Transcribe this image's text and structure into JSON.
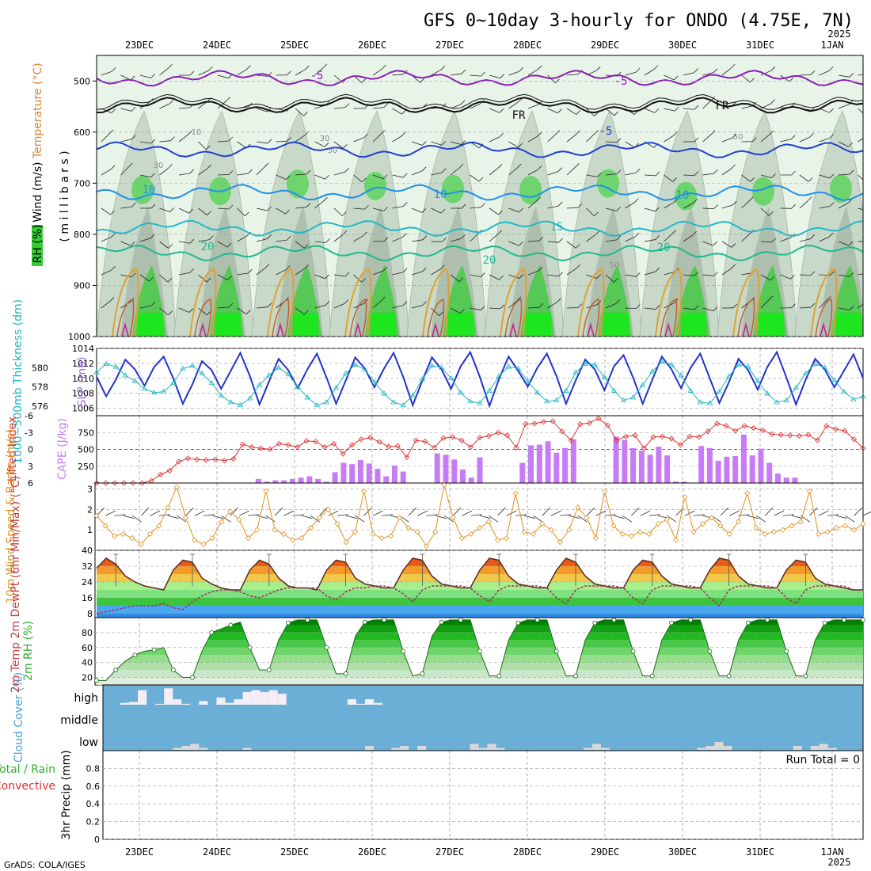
{
  "title": "GFS 0~10day 3-hourly for ONDO (4.75E, 7N)",
  "footer": "GrADS: COLA/IGES",
  "dates": [
    "23DEC",
    "24DEC",
    "25DEC",
    "26DEC",
    "27DEC",
    "28DEC",
    "29DEC",
    "30DEC",
    "31DEC",
    "1JAN"
  ],
  "year_label": "2025",
  "colors": {
    "grid": "#a0a0a0",
    "cloud_bg": "#6baed6",
    "cape": "#c77cf5",
    "li": "#dd3333",
    "slp": "#2233cc",
    "thk": "#22b5c0",
    "wind10": "#e09020",
    "temp": "#5a2a20",
    "dewpt": "#a03060"
  },
  "chart_data": [
    {
      "id": "upper_air",
      "type": "heatmap",
      "ylabel": "millibars",
      "labels": {
        "wind": "Wind (m/s)",
        "temperature": "Temperature (°C)",
        "rh": "RH (%)"
      },
      "yticks": [
        500,
        600,
        700,
        800,
        900,
        1000
      ],
      "ylim": [
        1000,
        450
      ],
      "contours": [
        {
          "name": "-5",
          "kind": "temperature",
          "color": "#8a1fb5",
          "level": 495
        },
        {
          "name": "FR",
          "kind": "freezing",
          "color": "#111111",
          "level": 548
        },
        {
          "name": "-5",
          "kind": "temperature",
          "color": "#2040d0",
          "level": 635
        },
        {
          "name": "10",
          "kind": "temperature",
          "color": "#2090e8",
          "level": 718
        },
        {
          "name": "15",
          "kind": "temperature",
          "color": "#22b8c8",
          "level": 788
        },
        {
          "name": "20",
          "kind": "temperature",
          "color": "#20b890",
          "level": 836
        }
      ],
      "contour_labels": [
        "-5",
        "-5",
        "FR",
        "FR",
        "-5",
        "10",
        "10",
        "10",
        "15",
        "20",
        "20",
        "20"
      ],
      "rh_labels": [
        "10",
        "30",
        "30",
        "50",
        "50",
        "50"
      ]
    },
    {
      "id": "slp_thickness",
      "type": "line",
      "ylabel_left": "1000~500mb Thickness (dm)",
      "ylabel_right": "SLP (mb)",
      "left_ticks": [
        576,
        578,
        580
      ],
      "right_ticks": [
        1006,
        1008,
        1010,
        1012,
        1014
      ],
      "left_range": [
        575,
        582
      ],
      "right_range": [
        1005,
        1014
      ],
      "series": [
        {
          "name": "SLP",
          "axis": "right",
          "values": [
            1010.2,
            1007.6,
            1009.8,
            1012.5,
            1011.2,
            1009.0,
            1011.5,
            1012.9,
            1010.0,
            1006.6,
            1009.2,
            1012.3,
            1011.1,
            1008.6,
            1011.0,
            1013.4,
            1010.3,
            1006.5,
            1009.6,
            1012.6,
            1011.1,
            1008.7,
            1011.2,
            1013.3,
            1010.1,
            1006.6,
            1009.7,
            1012.8,
            1011.3,
            1008.8,
            1011.3,
            1013.4,
            1010.2,
            1006.4,
            1009.7,
            1012.8,
            1011.2,
            1008.6,
            1011.6,
            1013.5,
            1010.2,
            1006.3,
            1009.9,
            1012.9,
            1011.0,
            1008.9,
            1011.4,
            1013.3,
            1010.3,
            1006.6,
            1009.7,
            1012.5,
            1011.2,
            1008.4,
            1011.6,
            1013.1,
            1010.1,
            1006.6,
            1009.8,
            1012.9,
            1011.2,
            1008.7,
            1011.4,
            1013.3,
            1010.0,
            1006.7,
            1009.5,
            1012.6,
            1011.1,
            1008.5,
            1011.5,
            1013.5,
            1010.1,
            1006.5,
            1009.8,
            1012.6,
            1011.2,
            1008.8,
            1011.0,
            1013.2,
            1010.0
          ]
        },
        {
          "name": "Thickness",
          "axis": "left",
          "values": [
            579.5,
            580.4,
            580.1,
            579.2,
            578.6,
            577.8,
            577.4,
            577.5,
            578.4,
            579.9,
            580.2,
            579.4,
            578.4,
            577.1,
            576.4,
            576.1,
            576.8,
            578.2,
            579.2,
            580.0,
            579.3,
            578.0,
            576.9,
            576.1,
            576.4,
            577.9,
            579.4,
            580.3,
            579.8,
            578.5,
            577.3,
            576.4,
            576.1,
            577.1,
            578.8,
            580.2,
            580.0,
            578.9,
            577.4,
            576.5,
            576.3,
            577.6,
            579.1,
            580.1,
            579.9,
            578.6,
            577.4,
            576.5,
            576.6,
            577.6,
            579.5,
            580.4,
            580.3,
            579.0,
            577.6,
            576.6,
            576.9,
            578.2,
            579.6,
            580.6,
            580.3,
            579.2,
            577.6,
            576.4,
            576.3,
            577.5,
            579.1,
            580.3,
            580.1,
            578.6,
            577.3,
            576.4,
            576.6,
            577.9,
            579.4,
            580.4,
            580.0,
            578.7,
            577.5,
            576.7,
            577.0
          ]
        }
      ]
    },
    {
      "id": "cape_li",
      "type": "bar",
      "ylabel_left": "Lifted Index",
      "ylabel_right": "CAPE (J/kg)",
      "li_ticks": [
        "-3",
        "-6",
        "0",
        "3",
        "6"
      ],
      "cape_ticks": [
        "250",
        "500",
        "750"
      ],
      "cape_range": [
        0,
        1000
      ],
      "li_range": [
        6,
        -6
      ],
      "series": [
        {
          "name": "CAPE",
          "values": [
            0,
            0,
            0,
            0,
            0,
            0,
            0,
            0,
            0,
            0,
            0,
            0,
            0,
            0,
            0,
            0,
            0,
            0,
            0,
            60,
            20,
            40,
            40,
            60,
            80,
            100,
            60,
            20,
            160,
            300,
            280,
            340,
            290,
            210,
            100,
            260,
            170,
            0,
            0,
            0,
            440,
            420,
            350,
            200,
            80,
            380,
            0,
            0,
            0,
            0,
            300,
            560,
            570,
            620,
            450,
            520,
            650,
            0,
            0,
            0,
            0,
            690,
            640,
            520,
            480,
            420,
            540,
            410,
            20,
            20,
            0,
            550,
            520,
            330,
            390,
            400,
            720,
            410,
            510,
            300,
            140,
            80,
            80,
            0,
            0,
            0,
            0,
            0,
            0,
            0,
            0
          ]
        },
        {
          "name": "Lifted Index",
          "values": [
            6,
            6,
            6,
            6,
            6,
            6,
            5.6,
            4.5,
            3.8,
            2.2,
            1.6,
            1.8,
            1.9,
            1.8,
            2,
            1.7,
            -0.9,
            -0.4,
            -0.2,
            0,
            -1,
            -0.8,
            -0.4,
            -1.5,
            -1.4,
            -0.4,
            -1,
            0.8,
            -0.8,
            -1.8,
            -2.1,
            -1.3,
            -0.5,
            -0.6,
            1.4,
            -1.6,
            -1.4,
            -0.3,
            -2,
            -2.2,
            -1.6,
            -0.4,
            -2.1,
            -2.4,
            -3,
            -2.5,
            -0.3,
            -4.5,
            -4.6,
            -4.9,
            -5,
            -3.2,
            -1.6,
            -4.5,
            -4.7,
            -5.5,
            -4.3,
            -1.6,
            -2.3,
            -2.5,
            -0.2,
            -2.2,
            -2.3,
            -1.9,
            -0.8,
            -2.3,
            -2.2,
            -3.2,
            -4.6,
            -4.2,
            -3.3,
            -4.2,
            -3.8,
            -3.4,
            -2.7,
            -2.6,
            -2.5,
            -2.4,
            -2.6,
            -1.6,
            -4.2,
            -3.6,
            -3.3,
            -1.8,
            -0.2
          ]
        }
      ]
    },
    {
      "id": "wind10m",
      "type": "line",
      "ylabel": "10m Wind Speed & Barbs (m/s)",
      "yticks": [
        1,
        2,
        3
      ],
      "ylim": [
        0,
        3.3
      ],
      "series": [
        {
          "name": "10m Wind Speed",
          "values": [
            1.7,
            1.2,
            0.7,
            0.8,
            0.6,
            0.3,
            0.8,
            1.2,
            2.1,
            3.1,
            1.6,
            0.5,
            0.3,
            0.6,
            1.4,
            1.9,
            1.5,
            0.6,
            1.0,
            2.9,
            1.0,
            0.8,
            0.5,
            0.6,
            1.1,
            1.6,
            2.0,
            1.3,
            0.4,
            0.9,
            2.9,
            0.8,
            0.6,
            0.7,
            1.6,
            1.1,
            0.9,
            0.2,
            0.9,
            3.2,
            1.6,
            0.6,
            0.8,
            1.1,
            1.4,
            0.5,
            0.6,
            2.8,
            0.9,
            0.8,
            1.3,
            1.0,
            0.4,
            1.0,
            2.1,
            1.6,
            0.6,
            2.9,
            1.2,
            0.8,
            0.7,
            0.9,
            0.8,
            1.3,
            1.5,
            0.5,
            2.6,
            0.9,
            1.3,
            1.6,
            1.2,
            0.8,
            1.4,
            2.8,
            1.1,
            0.8,
            0.9,
            1.0,
            1.2,
            1.4,
            2.9,
            0.8,
            0.9,
            1.1,
            1.2,
            1.0,
            1.3
          ]
        }
      ]
    },
    {
      "id": "temp2m",
      "type": "area",
      "ylabel": "2m Temp 2m DewPt (6hr Min/Max) (°C)",
      "yticks": [
        8,
        16,
        24,
        32,
        40
      ],
      "ylim": [
        6,
        40
      ],
      "series": [
        {
          "name": "2m Temp",
          "values": [
            31,
            36,
            33,
            27,
            24,
            22,
            21,
            20,
            30,
            35,
            34,
            26,
            23,
            21,
            20,
            20,
            30,
            35,
            33,
            26,
            22,
            21,
            21,
            20,
            30,
            35,
            34,
            26,
            23,
            22,
            21,
            21,
            30,
            36,
            35,
            27,
            23,
            22,
            21,
            21,
            30,
            36,
            35,
            27,
            23,
            22,
            21,
            21,
            30,
            36,
            34,
            27,
            23,
            22,
            21,
            21,
            30,
            35,
            34,
            27,
            23,
            22,
            21,
            21,
            30,
            36,
            35,
            27,
            23,
            22,
            21,
            21,
            30,
            35,
            34,
            26,
            23,
            22,
            21,
            20,
            20
          ]
        },
        {
          "name": "2m DewPt",
          "values": [
            8,
            9,
            10,
            11,
            12,
            12,
            12,
            13,
            11,
            10,
            14,
            17,
            19,
            20,
            20,
            19,
            17,
            16,
            18,
            20,
            21,
            21,
            21,
            21,
            17,
            15,
            19,
            21,
            21,
            22,
            22,
            21,
            18,
            14,
            20,
            22,
            22,
            22,
            22,
            21,
            17,
            14,
            20,
            22,
            22,
            22,
            22,
            21,
            16,
            13,
            20,
            22,
            22,
            22,
            22,
            21,
            16,
            13,
            20,
            22,
            22,
            22,
            22,
            21,
            16,
            12,
            20,
            22,
            22,
            22,
            22,
            21,
            16,
            13,
            20,
            22,
            22,
            22,
            22,
            20,
            20
          ]
        }
      ]
    },
    {
      "id": "rh2m",
      "type": "area",
      "ylabel": "2m RH (%)",
      "yticks": [
        20,
        40,
        60,
        80
      ],
      "ylim": [
        10,
        100
      ],
      "series": [
        {
          "name": "2m RH",
          "values": [
            16,
            16,
            30,
            42,
            50,
            55,
            57,
            60,
            30,
            20,
            20,
            55,
            80,
            85,
            90,
            94,
            60,
            30,
            30,
            70,
            93,
            97,
            97,
            97,
            60,
            25,
            25,
            75,
            94,
            97,
            97,
            97,
            55,
            22,
            25,
            75,
            94,
            97,
            97,
            97,
            55,
            22,
            22,
            70,
            93,
            97,
            97,
            97,
            55,
            22,
            22,
            70,
            93,
            97,
            97,
            97,
            55,
            22,
            22,
            70,
            93,
            97,
            97,
            97,
            55,
            22,
            22,
            70,
            93,
            97,
            97,
            97,
            55,
            22,
            22,
            70,
            93,
            97,
            97,
            97,
            97
          ]
        }
      ]
    },
    {
      "id": "cloud_cover",
      "type": "bar",
      "ylabel": "Cloud Cover (%)",
      "levels": [
        "high",
        "middle",
        "low"
      ],
      "series": [
        {
          "name": "high",
          "values": [
            0,
            0,
            10,
            15,
            80,
            0,
            5,
            90,
            30,
            5,
            0,
            20,
            0,
            40,
            10,
            30,
            70,
            80,
            70,
            80,
            60,
            0,
            0,
            0,
            0,
            0,
            0,
            0,
            30,
            5,
            30,
            10,
            0,
            0,
            0,
            0,
            0,
            0,
            0,
            0,
            0,
            0,
            0,
            0,
            0,
            0,
            0,
            0,
            0,
            0,
            0,
            0,
            0,
            0,
            0,
            0,
            0,
            0,
            0,
            0,
            0,
            0,
            0,
            0,
            0,
            0,
            0,
            0,
            0,
            0,
            0,
            0,
            0,
            0,
            0,
            0,
            0,
            0,
            0,
            0,
            0,
            0,
            0,
            0,
            0,
            0,
            0
          ]
        },
        {
          "name": "low",
          "values": [
            0,
            0,
            0,
            0,
            0,
            0,
            0,
            0,
            10,
            20,
            30,
            10,
            0,
            0,
            0,
            0,
            10,
            0,
            0,
            0,
            0,
            0,
            0,
            0,
            0,
            0,
            0,
            0,
            0,
            0,
            20,
            0,
            0,
            10,
            20,
            0,
            20,
            0,
            0,
            0,
            0,
            0,
            30,
            10,
            30,
            10,
            0,
            0,
            0,
            0,
            0,
            0,
            0,
            0,
            0,
            10,
            30,
            10,
            0,
            0,
            0,
            0,
            0,
            0,
            0,
            0,
            0,
            0,
            10,
            20,
            40,
            20,
            0,
            0,
            0,
            0,
            0,
            0,
            0,
            20,
            0,
            20,
            30,
            10,
            0,
            0,
            0
          ]
        }
      ]
    },
    {
      "id": "precip",
      "type": "bar",
      "ylabel_left": "Total / Rain",
      "ylabel_conv": "Convective",
      "ylabel": "3hr Precip (mm)",
      "yticks": [
        "0",
        "0.2",
        "0.4",
        "0.6",
        "0.8"
      ],
      "ylim": [
        0,
        1
      ],
      "run_total": "Run Total = 0",
      "series": [
        {
          "name": "3hr Precip",
          "values": []
        }
      ]
    }
  ]
}
